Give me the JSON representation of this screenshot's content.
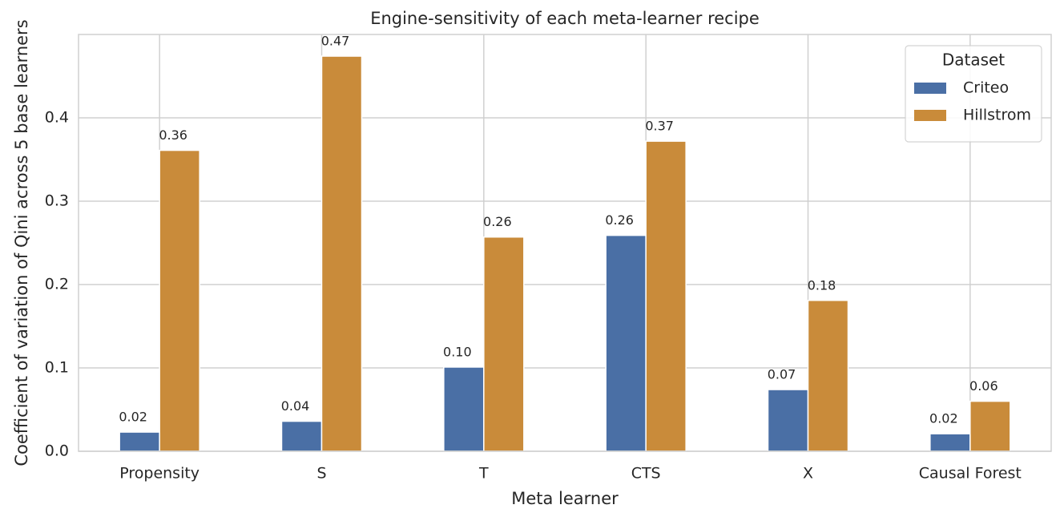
{
  "chart_data": {
    "type": "bar",
    "title": "Engine-sensitivity of each meta-learner recipe",
    "x_label": "Meta learner",
    "y_label": "Coefficient of variation of Qini across 5 base learners",
    "categories": [
      "Propensity",
      "S",
      "T",
      "CTS",
      "X",
      "Causal Forest"
    ],
    "series": [
      {
        "name": "Criteo",
        "color": "#4a6fa5",
        "values": [
          0.023,
          0.036,
          0.101,
          0.259,
          0.074,
          0.021
        ],
        "value_labels": [
          "0.02",
          "0.04",
          "0.10",
          "0.26",
          "0.07",
          "0.02"
        ]
      },
      {
        "name": "Hillstrom",
        "color": "#c98b3a",
        "values": [
          0.361,
          0.474,
          0.257,
          0.372,
          0.181,
          0.06
        ],
        "value_labels": [
          "0.36",
          "0.47",
          "0.26",
          "0.37",
          "0.18",
          "0.06"
        ]
      }
    ],
    "legend_title": "Dataset",
    "legend": "upper right",
    "ylim": [
      0,
      0.5
    ],
    "yticks": [
      {
        "value": 0,
        "label": "0.0"
      },
      0.1,
      0.2,
      0.3,
      0.4
    ],
    "grid": true
  }
}
